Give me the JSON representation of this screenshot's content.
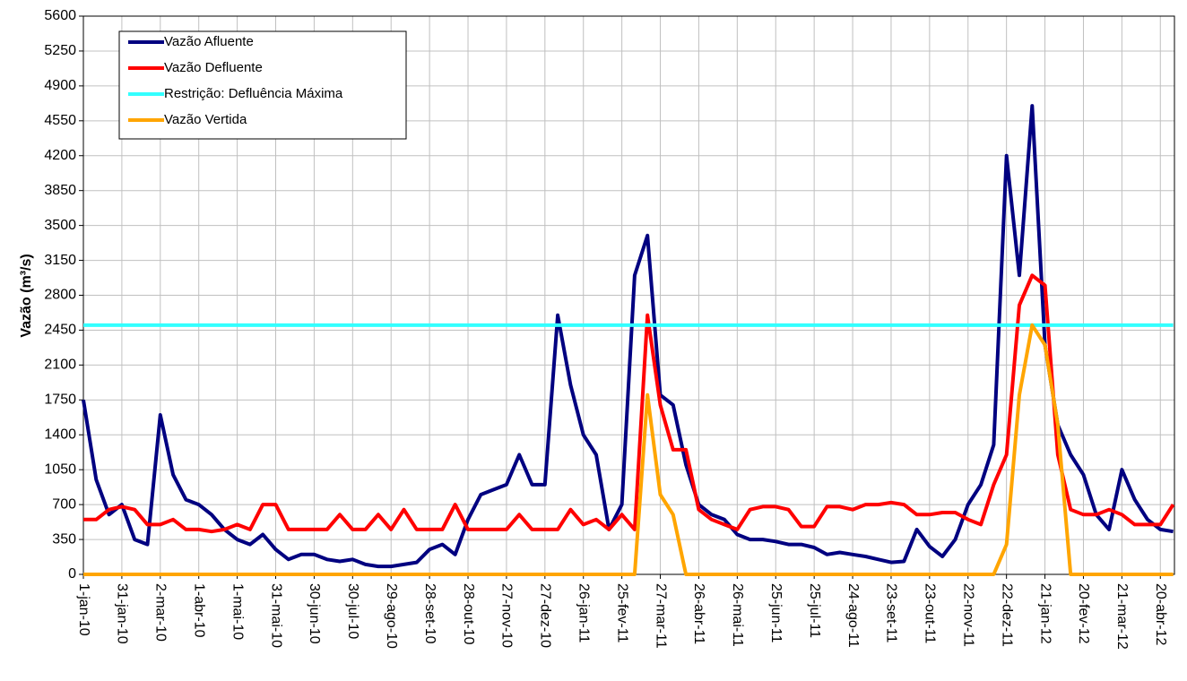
{
  "chart_data": {
    "type": "line",
    "y_label": "Vazão (m³/s)",
    "x": [
      "1-jan-10",
      "11-jan-10",
      "21-jan-10",
      "31-jan-10",
      "10-fev-10",
      "20-fev-10",
      "2-mar-10",
      "12-mar-10",
      "22-mar-10",
      "1-abr-10",
      "11-abr-10",
      "21-abr-10",
      "1-mai-10",
      "11-mai-10",
      "21-mai-10",
      "31-mai-10",
      "10-jun-10",
      "20-jun-10",
      "30-jun-10",
      "10-jul-10",
      "20-jul-10",
      "30-jul-10",
      "9-ago-10",
      "19-ago-10",
      "29-ago-10",
      "8-set-10",
      "18-set-10",
      "28-set-10",
      "8-out-10",
      "18-out-10",
      "28-out-10",
      "7-nov-10",
      "17-nov-10",
      "27-nov-10",
      "7-dez-10",
      "17-dez-10",
      "27-dez-10",
      "6-jan-11",
      "16-jan-11",
      "26-jan-11",
      "5-fev-11",
      "15-fev-11",
      "25-fev-11",
      "7-mar-11",
      "17-mar-11",
      "27-mar-11",
      "6-abr-11",
      "16-abr-11",
      "26-abr-11",
      "6-mai-11",
      "16-mai-11",
      "26-mai-11",
      "5-jun-11",
      "15-jun-11",
      "25-jun-11",
      "5-jul-11",
      "15-jul-11",
      "25-jul-11",
      "4-ago-11",
      "14-ago-11",
      "24-ago-11",
      "3-set-11",
      "13-set-11",
      "23-set-11",
      "3-out-11",
      "13-out-11",
      "23-out-11",
      "2-nov-11",
      "12-nov-11",
      "22-nov-11",
      "2-dez-11",
      "12-dez-11",
      "22-dez-11",
      "1-jan-12",
      "11-jan-12",
      "21-jan-12",
      "31-jan-12",
      "10-fev-12",
      "20-fev-12",
      "1-mar-12",
      "11-mar-12",
      "21-mar-12",
      "31-mar-12",
      "10-abr-12",
      "20-abr-12",
      "30-abr-12"
    ],
    "series": [
      {
        "name": "Vazão Afluente",
        "color": "#000080",
        "values": [
          1750,
          950,
          600,
          700,
          350,
          300,
          1600,
          1000,
          750,
          700,
          600,
          450,
          350,
          300,
          400,
          250,
          150,
          200,
          200,
          150,
          130,
          150,
          100,
          80,
          80,
          100,
          120,
          250,
          300,
          200,
          550,
          800,
          850,
          900,
          1200,
          900,
          900,
          2600,
          1900,
          1400,
          1200,
          450,
          700,
          3000,
          3400,
          1800,
          1700,
          1100,
          700,
          600,
          550,
          400,
          350,
          350,
          330,
          300,
          300,
          270,
          200,
          220,
          200,
          180,
          150,
          120,
          130,
          450,
          280,
          180,
          350,
          700,
          900,
          1300,
          4200,
          3000,
          4700,
          2300,
          1500,
          1200,
          1000,
          600,
          450,
          1050,
          750,
          550,
          450,
          430
        ]
      },
      {
        "name": "Vazão Defluente",
        "color": "#ff0000",
        "values": [
          550,
          550,
          650,
          680,
          650,
          500,
          500,
          550,
          450,
          450,
          430,
          450,
          500,
          450,
          700,
          700,
          450,
          450,
          450,
          450,
          600,
          450,
          450,
          600,
          450,
          650,
          450,
          450,
          450,
          700,
          450,
          450,
          450,
          450,
          600,
          450,
          450,
          450,
          650,
          500,
          550,
          450,
          600,
          450,
          2600,
          1700,
          1250,
          1250,
          650,
          550,
          500,
          450,
          650,
          680,
          680,
          650,
          480,
          480,
          680,
          680,
          650,
          700,
          700,
          720,
          700,
          600,
          600,
          620,
          620,
          550,
          500,
          900,
          1200,
          2700,
          3000,
          2900,
          1200,
          650,
          600,
          600,
          650,
          600,
          500,
          500,
          500,
          700
        ]
      },
      {
        "name": "Restrição: Defluência Máxima",
        "color": "#33ffff",
        "values": [
          2500,
          2500,
          2500,
          2500,
          2500,
          2500,
          2500,
          2500,
          2500,
          2500,
          2500,
          2500,
          2500,
          2500,
          2500,
          2500,
          2500,
          2500,
          2500,
          2500,
          2500,
          2500,
          2500,
          2500,
          2500,
          2500,
          2500,
          2500,
          2500,
          2500,
          2500,
          2500,
          2500,
          2500,
          2500,
          2500,
          2500,
          2500,
          2500,
          2500,
          2500,
          2500,
          2500,
          2500,
          2500,
          2500,
          2500,
          2500,
          2500,
          2500,
          2500,
          2500,
          2500,
          2500,
          2500,
          2500,
          2500,
          2500,
          2500,
          2500,
          2500,
          2500,
          2500,
          2500,
          2500,
          2500,
          2500,
          2500,
          2500,
          2500,
          2500,
          2500,
          2500,
          2500,
          2500,
          2500,
          2500,
          2500,
          2500,
          2500,
          2500,
          2500,
          2500,
          2500,
          2500,
          2500
        ]
      },
      {
        "name": "Vazão Vertida",
        "color": "#ffa500",
        "values": [
          0,
          0,
          0,
          0,
          0,
          0,
          0,
          0,
          0,
          0,
          0,
          0,
          0,
          0,
          0,
          0,
          0,
          0,
          0,
          0,
          0,
          0,
          0,
          0,
          0,
          0,
          0,
          0,
          0,
          0,
          0,
          0,
          0,
          0,
          0,
          0,
          0,
          0,
          0,
          0,
          0,
          0,
          0,
          0,
          1800,
          800,
          600,
          0,
          0,
          0,
          0,
          0,
          0,
          0,
          0,
          0,
          0,
          0,
          0,
          0,
          0,
          0,
          0,
          0,
          0,
          0,
          0,
          0,
          0,
          0,
          0,
          0,
          300,
          1800,
          2500,
          2300,
          1500,
          0,
          0,
          0,
          0,
          0,
          0,
          0,
          0,
          0
        ]
      }
    ],
    "xlim": [
      "1-jan-10",
      "1-mai-12"
    ],
    "xticks": [
      "1-jan-10",
      "31-jan-10",
      "2-mar-10",
      "1-abr-10",
      "1-mai-10",
      "31-mai-10",
      "30-jun-10",
      "30-jul-10",
      "29-ago-10",
      "28-set-10",
      "28-out-10",
      "27-nov-10",
      "27-dez-10",
      "26-jan-11",
      "25-fev-11",
      "27-mar-11",
      "26-abr-11",
      "26-mai-11",
      "25-jun-11",
      "25-jul-11",
      "24-ago-11",
      "23-set-11",
      "23-out-11",
      "22-nov-11",
      "22-dez-11",
      "21-jan-12",
      "20-fev-12",
      "21-mar-12",
      "20-abr-12"
    ],
    "ylim": [
      0,
      5600
    ],
    "yticks": [
      0,
      350,
      700,
      1050,
      1400,
      1750,
      2100,
      2450,
      2800,
      3150,
      3500,
      3850,
      4200,
      4550,
      4900,
      5250,
      5600
    ],
    "grid": true,
    "legend": "upper-left"
  }
}
